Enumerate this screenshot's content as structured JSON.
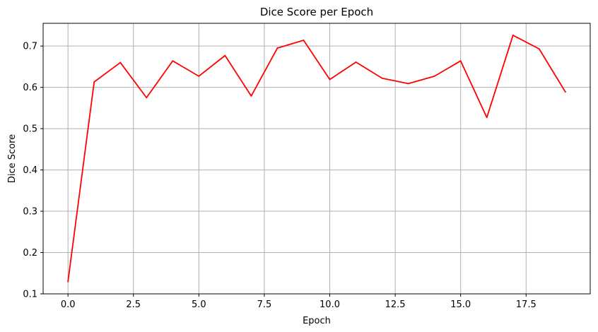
{
  "chart_data": {
    "type": "line",
    "title": "Dice Score per Epoch",
    "xlabel": "Epoch",
    "ylabel": "Dice Score",
    "xlim": [
      -0.95,
      19.95
    ],
    "ylim": [
      0.1,
      0.755
    ],
    "x_ticks": [
      0.0,
      2.5,
      5.0,
      7.5,
      10.0,
      12.5,
      15.0,
      17.5
    ],
    "x_tick_labels": [
      "0.0",
      "2.5",
      "5.0",
      "7.5",
      "10.0",
      "12.5",
      "15.0",
      "17.5"
    ],
    "y_ticks": [
      0.1,
      0.2,
      0.3,
      0.4,
      0.5,
      0.6,
      0.7
    ],
    "y_tick_labels": [
      "0.1",
      "0.2",
      "0.3",
      "0.4",
      "0.5",
      "0.6",
      "0.7"
    ],
    "grid": true,
    "legend": "none",
    "series": [
      {
        "color": "#ff0000",
        "x": [
          0,
          1,
          2,
          3,
          4,
          5,
          6,
          7,
          8,
          9,
          10,
          11,
          12,
          13,
          14,
          15,
          16,
          17,
          18,
          19
        ],
        "values": [
          0.13,
          0.613,
          0.66,
          0.575,
          0.664,
          0.627,
          0.677,
          0.579,
          0.695,
          0.714,
          0.619,
          0.661,
          0.622,
          0.609,
          0.627,
          0.664,
          0.527,
          0.726,
          0.693,
          0.589
        ]
      }
    ]
  }
}
